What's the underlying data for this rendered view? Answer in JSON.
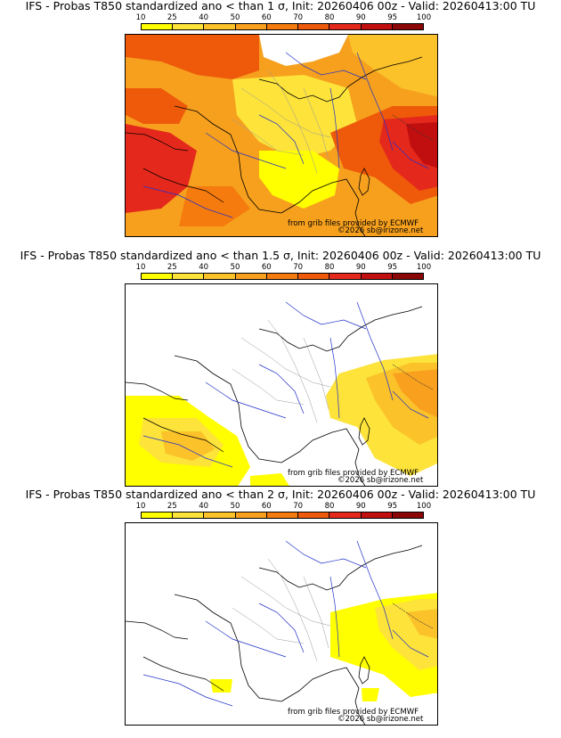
{
  "colorbar": {
    "ticks": [
      "10",
      "25",
      "40",
      "50",
      "60",
      "70",
      "80",
      "90",
      "95",
      "100"
    ],
    "colors": [
      "#ffff00",
      "#fde33a",
      "#fbc22a",
      "#f9a11e",
      "#f57b0f",
      "#ee5a0a",
      "#e5281c",
      "#c10f0f",
      "#8b0606"
    ]
  },
  "panels": [
    {
      "title": "IFS - Probas T850  standardized ano < than 1 σ, Init: 20260406 00z - Valid: 20260413:00 TU",
      "credit": "from grib files provided by ECMWF",
      "copyright": "©2026 sb@irizone.net"
    },
    {
      "title": "IFS - Probas T850  standardized ano < than 1.5 σ, Init: 20260406 00z - Valid: 20260413:00 TU",
      "credit": "from grib files provided by ECMWF",
      "copyright": "©2026 sb@irizone.net"
    },
    {
      "title": "IFS - Probas T850  standardized ano < than 2 σ, Init: 20260406 00z - Valid: 20260413:00 TU",
      "credit": "from grib files provided by ECMWF",
      "copyright": "©2026 sb@irizone.net"
    }
  ]
}
